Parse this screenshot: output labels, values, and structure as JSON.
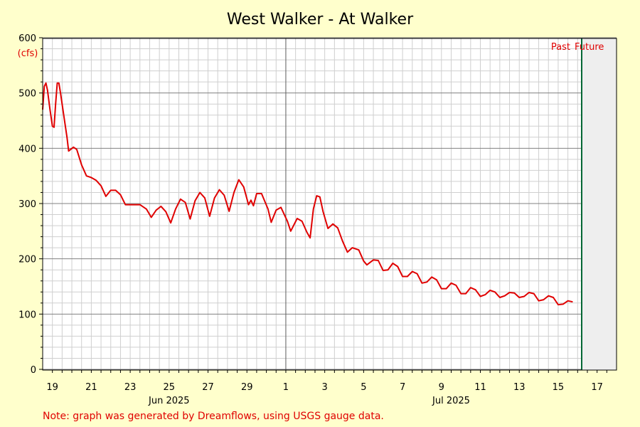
{
  "chart_data": {
    "type": "line",
    "title": "West Walker - At Walker",
    "unit_label": "(cfs)",
    "ylim": [
      0,
      600
    ],
    "y_ticks": [
      0,
      100,
      200,
      300,
      400,
      500,
      600
    ],
    "x_range": [
      "2025-06-18T12:00",
      "2025-07-18T00:00"
    ],
    "x_tick_labels": [
      "19",
      "21",
      "23",
      "25",
      "27",
      "29",
      "1",
      "3",
      "5",
      "7",
      "9",
      "11",
      "13",
      "15",
      "17"
    ],
    "month_labels": [
      "Jun 2025",
      "Jul 2025"
    ],
    "month_boundary": "2025-07-01",
    "now_marker": "2025-07-16T05:00",
    "past_label": "Past",
    "future_label": "Future",
    "grid": true,
    "series": [
      {
        "color": "#e00000",
        "points": [
          [
            "2025-06-18T12:00",
            470
          ],
          [
            "2025-06-18T14:00",
            512
          ],
          [
            "2025-06-18T16:00",
            518
          ],
          [
            "2025-06-18T18:00",
            505
          ],
          [
            "2025-06-18T21:00",
            470
          ],
          [
            "2025-06-19T00:00",
            440
          ],
          [
            "2025-06-19T02:00",
            438
          ],
          [
            "2025-06-19T04:00",
            480
          ],
          [
            "2025-06-19T06:00",
            518
          ],
          [
            "2025-06-19T08:00",
            518
          ],
          [
            "2025-06-19T10:00",
            500
          ],
          [
            "2025-06-19T14:00",
            460
          ],
          [
            "2025-06-19T18:00",
            420
          ],
          [
            "2025-06-19T20:00",
            395
          ],
          [
            "2025-06-20T02:00",
            402
          ],
          [
            "2025-06-20T06:00",
            398
          ],
          [
            "2025-06-20T12:00",
            370
          ],
          [
            "2025-06-20T18:00",
            350
          ],
          [
            "2025-06-21T00:00",
            347
          ],
          [
            "2025-06-21T06:00",
            342
          ],
          [
            "2025-06-21T12:00",
            332
          ],
          [
            "2025-06-21T18:00",
            313
          ],
          [
            "2025-06-22T00:00",
            324
          ],
          [
            "2025-06-22T06:00",
            324
          ],
          [
            "2025-06-22T12:00",
            316
          ],
          [
            "2025-06-22T18:00",
            298
          ],
          [
            "2025-06-23T00:00",
            298
          ],
          [
            "2025-06-23T12:00",
            298
          ],
          [
            "2025-06-23T20:00",
            290
          ],
          [
            "2025-06-24T02:00",
            275
          ],
          [
            "2025-06-24T08:00",
            288
          ],
          [
            "2025-06-24T14:00",
            295
          ],
          [
            "2025-06-24T20:00",
            285
          ],
          [
            "2025-06-25T02:00",
            265
          ],
          [
            "2025-06-25T08:00",
            290
          ],
          [
            "2025-06-25T14:00",
            308
          ],
          [
            "2025-06-25T20:00",
            302
          ],
          [
            "2025-06-26T02:00",
            272
          ],
          [
            "2025-06-26T08:00",
            305
          ],
          [
            "2025-06-26T14:00",
            320
          ],
          [
            "2025-06-26T20:00",
            310
          ],
          [
            "2025-06-27T02:00",
            277
          ],
          [
            "2025-06-27T08:00",
            310
          ],
          [
            "2025-06-27T14:00",
            325
          ],
          [
            "2025-06-27T20:00",
            315
          ],
          [
            "2025-06-28T02:00",
            286
          ],
          [
            "2025-06-28T08:00",
            320
          ],
          [
            "2025-06-28T14:00",
            343
          ],
          [
            "2025-06-28T20:00",
            330
          ],
          [
            "2025-06-29T02:00",
            298
          ],
          [
            "2025-06-29T05:00",
            306
          ],
          [
            "2025-06-29T08:00",
            296
          ],
          [
            "2025-06-29T12:00",
            318
          ],
          [
            "2025-06-29T18:00",
            318
          ],
          [
            "2025-06-30T02:00",
            290
          ],
          [
            "2025-06-30T06:00",
            266
          ],
          [
            "2025-06-30T12:00",
            288
          ],
          [
            "2025-06-30T18:00",
            293
          ],
          [
            "2025-07-01T02:00",
            268
          ],
          [
            "2025-07-01T06:00",
            250
          ],
          [
            "2025-07-01T14:00",
            273
          ],
          [
            "2025-07-01T20:00",
            268
          ],
          [
            "2025-07-02T02:00",
            248
          ],
          [
            "2025-07-02T06:00",
            238
          ],
          [
            "2025-07-02T10:00",
            290
          ],
          [
            "2025-07-02T14:00",
            314
          ],
          [
            "2025-07-02T18:00",
            312
          ],
          [
            "2025-07-02T22:00",
            285
          ],
          [
            "2025-07-03T04:00",
            255
          ],
          [
            "2025-07-03T10:00",
            263
          ],
          [
            "2025-07-03T16:00",
            256
          ],
          [
            "2025-07-03T22:00",
            232
          ],
          [
            "2025-07-04T04:00",
            212
          ],
          [
            "2025-07-04T10:00",
            220
          ],
          [
            "2025-07-04T18:00",
            216
          ],
          [
            "2025-07-05T00:00",
            196
          ],
          [
            "2025-07-05T04:00",
            189
          ],
          [
            "2025-07-05T12:00",
            198
          ],
          [
            "2025-07-05T18:00",
            197
          ],
          [
            "2025-07-06T00:00",
            179
          ],
          [
            "2025-07-06T06:00",
            180
          ],
          [
            "2025-07-06T12:00",
            192
          ],
          [
            "2025-07-06T18:00",
            186
          ],
          [
            "2025-07-07T00:00",
            168
          ],
          [
            "2025-07-07T06:00",
            168
          ],
          [
            "2025-07-07T12:00",
            177
          ],
          [
            "2025-07-07T18:00",
            173
          ],
          [
            "2025-07-08T00:00",
            156
          ],
          [
            "2025-07-08T06:00",
            158
          ],
          [
            "2025-07-08T12:00",
            167
          ],
          [
            "2025-07-08T18:00",
            162
          ],
          [
            "2025-07-09T00:00",
            146
          ],
          [
            "2025-07-09T06:00",
            146
          ],
          [
            "2025-07-09T12:00",
            156
          ],
          [
            "2025-07-09T18:00",
            152
          ],
          [
            "2025-07-10T00:00",
            137
          ],
          [
            "2025-07-10T06:00",
            137
          ],
          [
            "2025-07-10T12:00",
            148
          ],
          [
            "2025-07-10T18:00",
            144
          ],
          [
            "2025-07-11T00:00",
            132
          ],
          [
            "2025-07-11T06:00",
            135
          ],
          [
            "2025-07-11T12:00",
            143
          ],
          [
            "2025-07-11T18:00",
            140
          ],
          [
            "2025-07-12T00:00",
            130
          ],
          [
            "2025-07-12T06:00",
            133
          ],
          [
            "2025-07-12T12:00",
            139
          ],
          [
            "2025-07-12T18:00",
            138
          ],
          [
            "2025-07-13T00:00",
            130
          ],
          [
            "2025-07-13T06:00",
            132
          ],
          [
            "2025-07-13T12:00",
            139
          ],
          [
            "2025-07-13T18:00",
            137
          ],
          [
            "2025-07-14T00:00",
            124
          ],
          [
            "2025-07-14T06:00",
            126
          ],
          [
            "2025-07-14T12:00",
            133
          ],
          [
            "2025-07-14T18:00",
            130
          ],
          [
            "2025-07-15T00:00",
            117
          ],
          [
            "2025-07-15T06:00",
            118
          ],
          [
            "2025-07-15T12:00",
            124
          ],
          [
            "2025-07-15T18:00",
            122
          ]
        ]
      }
    ],
    "note": "Note: graph was generated by Dreamflows, using USGS gauge data."
  }
}
